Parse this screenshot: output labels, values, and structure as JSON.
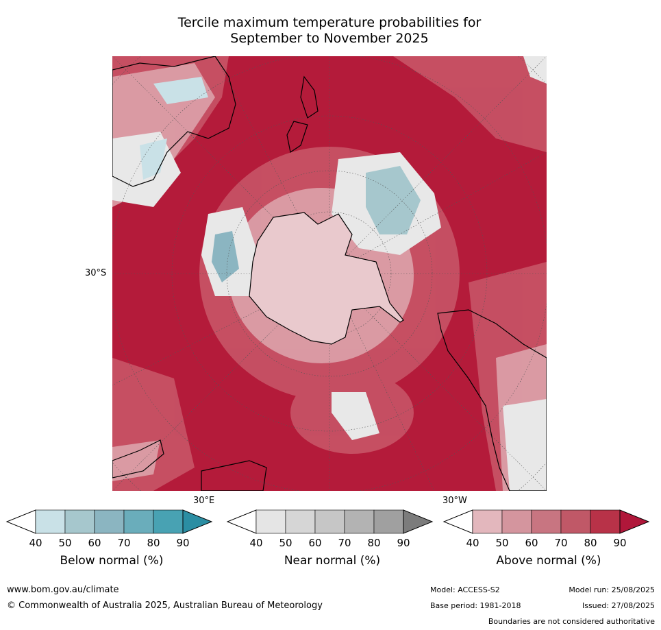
{
  "title_line1": "Tercile maximum temperature probabilities for",
  "title_line2": "September to November 2025",
  "map": {
    "projection_center": "South Pole",
    "labels": {
      "lat_30s": "30°S",
      "lon_30e": "30°E",
      "lon_30w": "30°W"
    },
    "dominant_category": "Above normal",
    "features": [
      "Antarctica",
      "Australia",
      "New Zealand",
      "South America",
      "Southern Africa"
    ]
  },
  "legends": [
    {
      "title": "Below normal (%)",
      "ticks": [
        "40",
        "50",
        "60",
        "70",
        "80",
        "90"
      ],
      "colors": [
        "#ffffff",
        "#c9e1e7",
        "#a6c7cd",
        "#8bb5c1",
        "#6aadbb",
        "#48a2b3",
        "#2b8ea3"
      ]
    },
    {
      "title": "Near normal (%)",
      "ticks": [
        "40",
        "50",
        "60",
        "70",
        "80",
        "90"
      ],
      "colors": [
        "#ffffff",
        "#e5e5e5",
        "#d6d6d6",
        "#c6c6c6",
        "#b3b3b3",
        "#a0a0a0",
        "#7c7c7c"
      ]
    },
    {
      "title": "Above normal (%)",
      "ticks": [
        "40",
        "50",
        "60",
        "70",
        "80",
        "90"
      ],
      "colors": [
        "#ffffff",
        "#e3b7bd",
        "#d4959e",
        "#c87581",
        "#c05867",
        "#b83248",
        "#b0173a"
      ]
    }
  ],
  "footer": {
    "url": "www.bom.gov.au/climate",
    "copyright": "© Commonwealth of Australia 2025, Australian Bureau of Meteorology",
    "model": "Model: ACCESS-S2",
    "base_period": "Base period: 1981-2018",
    "model_run": "Model run: 25/08/2025",
    "issued": "Issued: 27/08/2025",
    "boundaries_note": "Boundaries are not considered authoritative"
  }
}
